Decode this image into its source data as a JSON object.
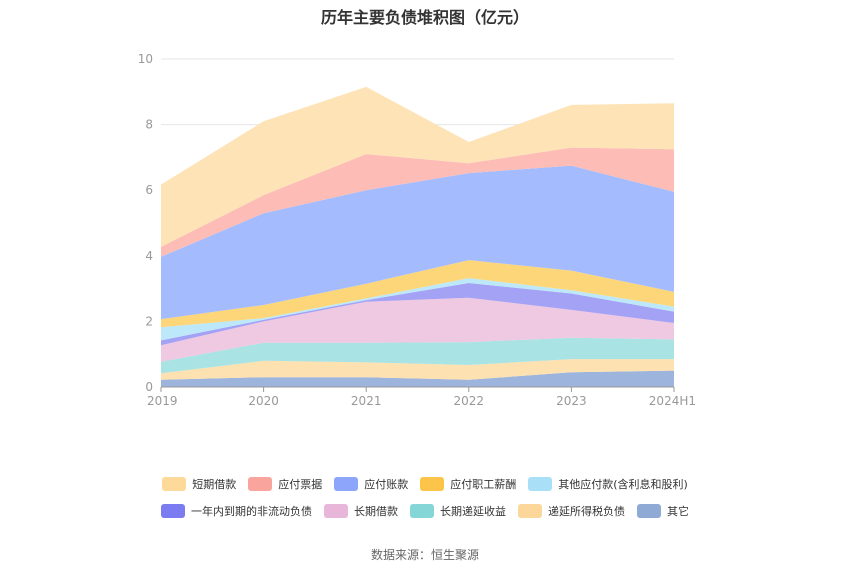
{
  "chart_data": {
    "type": "area",
    "stacked": true,
    "title": "历年主要负债堆积图（亿元）",
    "categories": [
      "2019",
      "2020",
      "2021",
      "2022",
      "2023",
      "2024H1"
    ],
    "ylim": [
      0,
      10
    ],
    "yticks": [
      0,
      2,
      4,
      6,
      8,
      10
    ],
    "grid": true,
    "legend_position": "bottom",
    "series": [
      {
        "name": "其它",
        "color": "#9db4dc",
        "values": [
          0.22,
          0.3,
          0.3,
          0.22,
          0.45,
          0.5
        ]
      },
      {
        "name": "递延所得税负债",
        "color": "#fde1b0",
        "values": [
          0.2,
          0.5,
          0.45,
          0.45,
          0.4,
          0.35
        ]
      },
      {
        "name": "长期递延收益",
        "color": "#a9e3e3",
        "values": [
          0.35,
          0.55,
          0.6,
          0.7,
          0.65,
          0.6
        ]
      },
      {
        "name": "长期借款",
        "color": "#efc8e2",
        "values": [
          0.5,
          0.65,
          1.25,
          1.35,
          0.85,
          0.5
        ]
      },
      {
        "name": "一年内到期的非流动负债",
        "color": "#a3a2f5",
        "values": [
          0.15,
          0.05,
          0.05,
          0.45,
          0.5,
          0.35
        ]
      },
      {
        "name": "其他应付款(含利息和股利)",
        "color": "#bde8f9",
        "values": [
          0.4,
          0.05,
          0.05,
          0.15,
          0.1,
          0.15
        ]
      },
      {
        "name": "应付职工薪酬",
        "color": "#fdd67a",
        "values": [
          0.25,
          0.4,
          0.45,
          0.55,
          0.6,
          0.45
        ]
      },
      {
        "name": "应付账款",
        "color": "#a4bcfd",
        "values": [
          1.9,
          2.8,
          2.85,
          2.65,
          3.2,
          3.05
        ]
      },
      {
        "name": "应付票据",
        "color": "#fdbcb6",
        "values": [
          0.3,
          0.55,
          1.1,
          0.3,
          0.55,
          1.3
        ]
      },
      {
        "name": "短期借款",
        "color": "#fde3b5",
        "values": [
          1.9,
          2.25,
          2.05,
          0.65,
          1.3,
          1.4
        ]
      }
    ]
  },
  "legend": {
    "rows": [
      [
        {
          "name": "短期借款",
          "color": "#fdd99a"
        },
        {
          "name": "应付票据",
          "color": "#f9a49c"
        },
        {
          "name": "应付账款",
          "color": "#8da6fb"
        },
        {
          "name": "应付职工薪酬",
          "color": "#fcc448"
        },
        {
          "name": "其他应付款(含利息和股利)",
          "color": "#a9e0f8"
        }
      ],
      [
        {
          "name": "一年内到期的非流动负债",
          "color": "#7b7cf1"
        },
        {
          "name": "长期借款",
          "color": "#e8b6d8"
        },
        {
          "name": "长期递延收益",
          "color": "#85d6d6"
        },
        {
          "name": "递延所得税负债",
          "color": "#fdd799"
        },
        {
          "name": "其它",
          "color": "#90aad6"
        }
      ]
    ]
  },
  "source": "数据来源：恒生聚源"
}
